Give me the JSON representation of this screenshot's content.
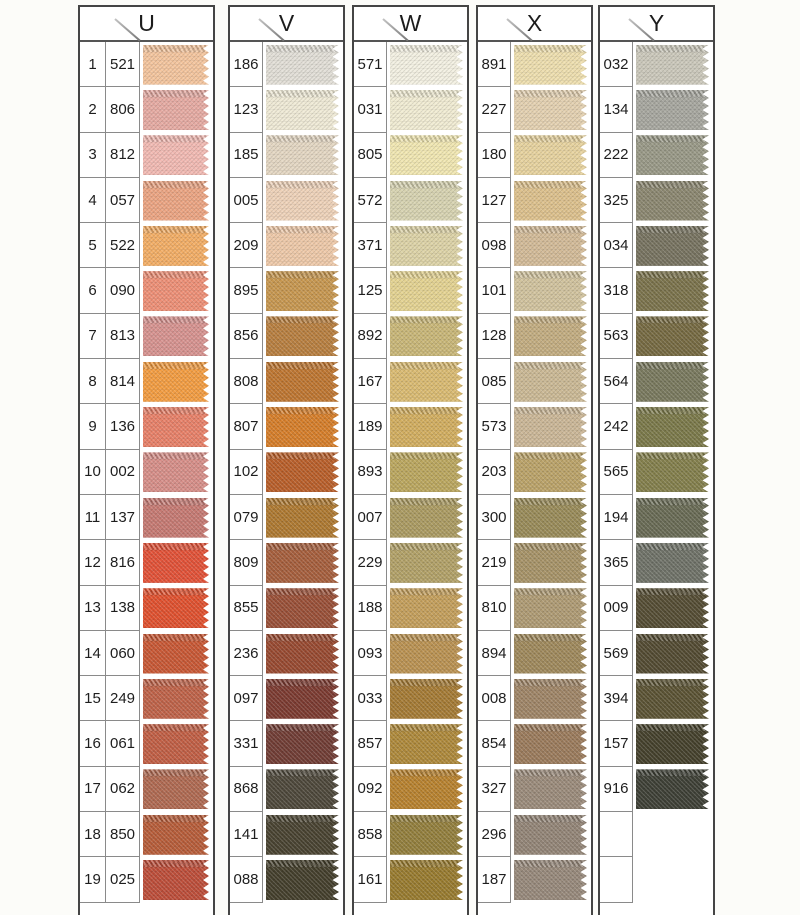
{
  "page": {
    "background": "#fcfcf9"
  },
  "board": {
    "columns": [
      {
        "letter": "U",
        "has_row_numbers": true,
        "rows": [
          {
            "num": "1",
            "code": "521",
            "color": "#F4C59E"
          },
          {
            "num": "2",
            "code": "806",
            "color": "#E6ABA3"
          },
          {
            "num": "3",
            "code": "812",
            "color": "#F2BAB3"
          },
          {
            "num": "4",
            "code": "057",
            "color": "#ECA583"
          },
          {
            "num": "5",
            "code": "522",
            "color": "#F3AE66"
          },
          {
            "num": "6",
            "code": "090",
            "color": "#EE9077"
          },
          {
            "num": "7",
            "code": "813",
            "color": "#D79390"
          },
          {
            "num": "8",
            "code": "814",
            "color": "#F39D42"
          },
          {
            "num": "9",
            "code": "136",
            "color": "#E88169"
          },
          {
            "num": "10",
            "code": "002",
            "color": "#D78F89"
          },
          {
            "num": "11",
            "code": "137",
            "color": "#C67A73"
          },
          {
            "num": "12",
            "code": "816",
            "color": "#E25238"
          },
          {
            "num": "13",
            "code": "138",
            "color": "#E0512F"
          },
          {
            "num": "14",
            "code": "060",
            "color": "#C85835"
          },
          {
            "num": "15",
            "code": "249",
            "color": "#BF6349"
          },
          {
            "num": "16",
            "code": "061",
            "color": "#C15F45"
          },
          {
            "num": "17",
            "code": "062",
            "color": "#B06A52"
          },
          {
            "num": "18",
            "code": "850",
            "color": "#B75D3A"
          },
          {
            "num": "19",
            "code": "025",
            "color": "#BD4E3A"
          }
        ]
      },
      {
        "letter": "V",
        "has_row_numbers": false,
        "rows": [
          {
            "code": "186",
            "color": "#E2DFD7"
          },
          {
            "code": "123",
            "color": "#EFEAD6"
          },
          {
            "code": "185",
            "color": "#E4D7C3"
          },
          {
            "code": "005",
            "color": "#EED2B9"
          },
          {
            "code": "209",
            "color": "#EEC9A9"
          },
          {
            "code": "895",
            "color": "#C79750"
          },
          {
            "code": "856",
            "color": "#B87F40"
          },
          {
            "code": "808",
            "color": "#BE7631"
          },
          {
            "code": "807",
            "color": "#D67E2A"
          },
          {
            "code": "102",
            "color": "#B95F2A"
          },
          {
            "code": "079",
            "color": "#AE7931"
          },
          {
            "code": "809",
            "color": "#A65F3D"
          },
          {
            "code": "855",
            "color": "#9A5038"
          },
          {
            "code": "236",
            "color": "#984A31"
          },
          {
            "code": "097",
            "color": "#7C3B31"
          },
          {
            "code": "331",
            "color": "#713D35"
          },
          {
            "code": "868",
            "color": "#4E483B"
          },
          {
            "code": "141",
            "color": "#494331"
          },
          {
            "code": "088",
            "color": "#443F2C"
          }
        ]
      },
      {
        "letter": "W",
        "has_row_numbers": false,
        "rows": [
          {
            "code": "571",
            "color": "#F3F0E2"
          },
          {
            "code": "031",
            "color": "#F1ECD3"
          },
          {
            "code": "805",
            "color": "#F1E7B2"
          },
          {
            "code": "572",
            "color": "#D7D3B1"
          },
          {
            "code": "371",
            "color": "#DDD3A7"
          },
          {
            "code": "125",
            "color": "#E4D392"
          },
          {
            "code": "892",
            "color": "#C9B778"
          },
          {
            "code": "167",
            "color": "#DABB72"
          },
          {
            "code": "189",
            "color": "#D2AE60"
          },
          {
            "code": "893",
            "color": "#BBA75F"
          },
          {
            "code": "007",
            "color": "#AB9B62"
          },
          {
            "code": "229",
            "color": "#B2A168"
          },
          {
            "code": "188",
            "color": "#C49F5C"
          },
          {
            "code": "093",
            "color": "#BA9252"
          },
          {
            "code": "033",
            "color": "#A57B35"
          },
          {
            "code": "857",
            "color": "#AE893B"
          },
          {
            "code": "092",
            "color": "#B8822F"
          },
          {
            "code": "858",
            "color": "#937F3D"
          },
          {
            "code": "161",
            "color": "#987B2F"
          }
        ]
      },
      {
        "letter": "X",
        "has_row_numbers": false,
        "rows": [
          {
            "code": "891",
            "color": "#EEDFAF"
          },
          {
            "code": "227",
            "color": "#E4D1B1"
          },
          {
            "code": "180",
            "color": "#E7D39F"
          },
          {
            "code": "127",
            "color": "#DDC18D"
          },
          {
            "code": "098",
            "color": "#D3BB98"
          },
          {
            "code": "101",
            "color": "#D1C39E"
          },
          {
            "code": "128",
            "color": "#C3AD81"
          },
          {
            "code": "085",
            "color": "#CBB995"
          },
          {
            "code": "573",
            "color": "#CBB797"
          },
          {
            "code": "203",
            "color": "#BBA369"
          },
          {
            "code": "300",
            "color": "#998B59"
          },
          {
            "code": "219",
            "color": "#A79368"
          },
          {
            "code": "810",
            "color": "#AF9B74"
          },
          {
            "code": "894",
            "color": "#9F895C"
          },
          {
            "code": "008",
            "color": "#9F8567"
          },
          {
            "code": "854",
            "color": "#9B7B5C"
          },
          {
            "code": "327",
            "color": "#9B8B7B"
          },
          {
            "code": "296",
            "color": "#938577"
          },
          {
            "code": "187",
            "color": "#97897B"
          }
        ]
      },
      {
        "letter": "Y",
        "has_row_numbers": false,
        "rows": [
          {
            "code": "032",
            "color": "#CBC8BB"
          },
          {
            "code": "134",
            "color": "#A7A79F"
          },
          {
            "code": "222",
            "color": "#999987"
          },
          {
            "code": "325",
            "color": "#8B8770"
          },
          {
            "code": "034",
            "color": "#777360"
          },
          {
            "code": "318",
            "color": "#7B734C"
          },
          {
            "code": "563",
            "color": "#766A42"
          },
          {
            "code": "564",
            "color": "#79795E"
          },
          {
            "code": "242",
            "color": "#7B794A"
          },
          {
            "code": "565",
            "color": "#837F4C"
          },
          {
            "code": "194",
            "color": "#696B55"
          },
          {
            "code": "365",
            "color": "#6F7268"
          },
          {
            "code": "009",
            "color": "#554D34"
          },
          {
            "code": "569",
            "color": "#534B32"
          },
          {
            "code": "394",
            "color": "#5B5334"
          },
          {
            "code": "157",
            "color": "#45412C"
          },
          {
            "code": "916",
            "color": "#3E4036"
          },
          {
            "code": "",
            "color": ""
          },
          {
            "code": "",
            "color": ""
          }
        ]
      }
    ]
  }
}
